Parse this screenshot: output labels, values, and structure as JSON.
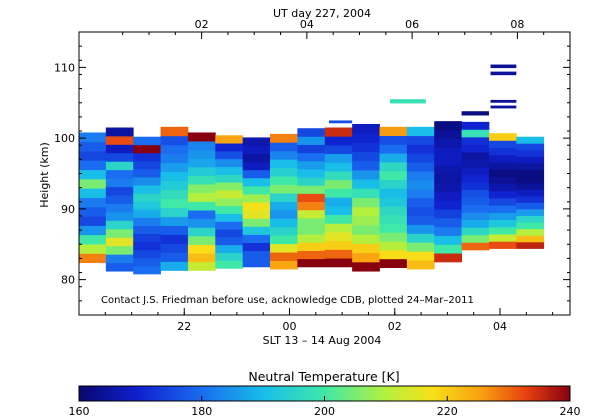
{
  "chart_data": {
    "type": "heatmap",
    "top_title": "UT day 227, 2004",
    "bottom_title": "SLT 13 – 14 Aug 2004",
    "ylabel": "Height (km)",
    "annotation": "Contact J.S. Friedman before use, acknowledge CDB, plotted 24–Mar–2011",
    "colorbar_title": "Neutral Temperature [K]",
    "x_range_hours": [
      19.67,
      29.0
    ],
    "ylim": [
      75,
      115
    ],
    "y_ticks": [
      80,
      90,
      100,
      110
    ],
    "y_tick_labels": [
      "80",
      "90",
      "100",
      "110"
    ],
    "top_ticks": [
      {
        "h": 22.0,
        "label": "02"
      },
      {
        "h": 24.0,
        "label": "04"
      },
      {
        "h": 26.0,
        "label": "06"
      },
      {
        "h": 28.0,
        "label": "08"
      }
    ],
    "bottom_ticks": [
      {
        "h": 21.67,
        "label": "22"
      },
      {
        "h": 23.67,
        "label": "00"
      },
      {
        "h": 25.67,
        "label": "02"
      },
      {
        "h": 27.67,
        "label": "04"
      }
    ],
    "colorbar": {
      "min": 160,
      "max": 240,
      "ticks": [
        160,
        180,
        200,
        220,
        240
      ],
      "tick_labels": [
        "160",
        "180",
        "200",
        "220",
        "240"
      ]
    },
    "profiles": [
      {
        "t0": 19.67,
        "t1": 20.18,
        "bottom": 82.4,
        "top": 100.8,
        "temps": [
          228,
          210,
          200,
          185,
          175,
          178,
          182,
          190,
          205,
          190,
          180,
          175,
          178,
          182
        ]
      },
      {
        "t0": 20.18,
        "t1": 20.7,
        "bottom": 81.2,
        "top": 101.5,
        "temps": [
          178,
          182,
          205,
          215,
          205,
          195,
          185,
          182,
          178,
          175,
          182,
          180,
          195,
          175,
          168,
          232,
          165
        ]
      },
      {
        "t0": 20.7,
        "t1": 21.22,
        "bottom": 80.8,
        "top": 100.2,
        "temps": [
          180,
          178,
          175,
          172,
          174,
          178,
          182,
          188,
          192,
          195,
          190,
          184,
          178,
          175,
          172,
          240,
          180
        ]
      },
      {
        "t0": 21.22,
        "t1": 21.74,
        "bottom": 81.3,
        "top": 101.6,
        "temps": [
          188,
          178,
          175,
          172,
          178,
          186,
          195,
          200,
          197,
          193,
          190,
          186,
          182,
          180,
          176,
          230
        ]
      },
      {
        "t0": 21.74,
        "t1": 22.26,
        "bottom": 81.3,
        "top": 100.8,
        "temps": [
          212,
          222,
          218,
          205,
          195,
          185,
          180,
          200,
          210,
          206,
          198,
          193,
          187,
          185,
          183,
          240
        ]
      },
      {
        "t0": 22.26,
        "t1": 22.78,
        "bottom": 81.6,
        "top": 100.4,
        "temps": [
          200,
          195,
          188,
          178,
          175,
          180,
          190,
          200,
          207,
          212,
          206,
          196,
          190,
          184,
          176,
          170,
          225
        ]
      },
      {
        "t0": 22.78,
        "t1": 23.3,
        "bottom": 81.8,
        "top": 100.1,
        "temps": [
          178,
          178,
          172,
          180,
          192,
          205,
          215,
          217,
          208,
          200,
          190,
          178,
          168,
          165,
          168,
          166
        ]
      },
      {
        "t0": 23.3,
        "t1": 23.82,
        "bottom": 81.5,
        "top": 100.6,
        "temps": [
          225,
          230,
          215,
          200,
          195,
          190,
          185,
          188,
          195,
          205,
          200,
          194,
          190,
          183,
          178,
          228
        ]
      },
      {
        "t0": 23.82,
        "t1": 24.34,
        "bottom": 81.8,
        "top": 101.4,
        "temps": [
          240,
          230,
          220,
          210,
          205,
          205,
          212,
          228,
          232,
          205,
          195,
          190,
          186,
          180,
          174,
          185,
          175
        ]
      },
      {
        "t0": 24.34,
        "t1": 24.86,
        "bottom": 81.8,
        "top": 101.5,
        "temps": [
          240,
          230,
          220,
          215,
          210,
          200,
          190,
          188,
          200,
          205,
          197,
          190,
          186,
          175,
          170,
          235
        ]
      },
      {
        "t0": 24.86,
        "t1": 25.38,
        "bottom": 81.2,
        "top": 102.0,
        "temps": [
          240,
          225,
          220,
          210,
          205,
          208,
          210,
          205,
          198,
          190,
          185,
          178,
          175,
          172,
          170,
          168
        ]
      },
      {
        "t0": 25.38,
        "t1": 25.9,
        "bottom": 81.7,
        "top": 101.6,
        "temps": [
          240,
          218,
          210,
          205,
          200,
          198,
          196,
          192,
          190,
          195,
          200,
          196,
          188,
          180,
          176,
          226
        ]
      },
      {
        "t0": 25.9,
        "t1": 26.42,
        "bottom": 81.5,
        "top": 101.6,
        "temps": [
          222,
          218,
          205,
          195,
          185,
          178,
          176,
          178,
          182,
          184,
          182,
          178,
          175,
          172,
          175,
          190
        ]
      },
      {
        "t0": 26.42,
        "t1": 26.94,
        "bottom": 82.5,
        "top": 102.4,
        "temps": [
          235,
          200,
          190,
          182,
          178,
          174,
          170,
          168,
          166,
          165,
          166,
          168,
          168,
          166,
          164,
          162
        ]
      },
      {
        "t0": 26.94,
        "t1": 27.46,
        "bottom": 84.2,
        "top": 102.3,
        "temps": [
          230,
          205,
          196,
          188,
          184,
          180,
          178,
          176,
          172,
          170,
          168,
          166,
          165,
          170,
          172,
          198,
          170
        ]
      },
      {
        "t0": 27.46,
        "t1": 27.98,
        "bottom": 84.4,
        "top": 100.7,
        "temps": [
          232,
          212,
          200,
          192,
          186,
          180,
          175,
          170,
          166,
          164,
          162,
          165,
          168,
          172,
          175,
          220
        ]
      },
      {
        "t0": 27.98,
        "t1": 28.5,
        "bottom": 84.4,
        "top": 100.2,
        "temps": [
          236,
          222,
          210,
          200,
          195,
          186,
          178,
          172,
          168,
          164,
          162,
          162,
          165,
          168,
          172,
          175,
          190
        ]
      }
    ],
    "layers": [
      {
        "t0": 25.58,
        "t1": 26.26,
        "h0": 104.9,
        "h1": 105.5,
        "temp": 198
      },
      {
        "t0": 26.94,
        "t1": 27.46,
        "h0": 103.2,
        "h1": 103.8,
        "temp": 162
      },
      {
        "t0": 27.49,
        "t1": 27.98,
        "h0": 104.2,
        "h1": 104.6,
        "temp": 164
      },
      {
        "t0": 27.49,
        "t1": 27.98,
        "h0": 105.0,
        "h1": 105.4,
        "temp": 164
      },
      {
        "t0": 27.49,
        "t1": 27.98,
        "h0": 108.9,
        "h1": 109.4,
        "temp": 164
      },
      {
        "t0": 27.49,
        "t1": 27.98,
        "h0": 109.9,
        "h1": 110.4,
        "temp": 164
      },
      {
        "t0": 24.42,
        "t1": 24.86,
        "h0": 102.1,
        "h1": 102.5,
        "temp": 176
      }
    ]
  }
}
